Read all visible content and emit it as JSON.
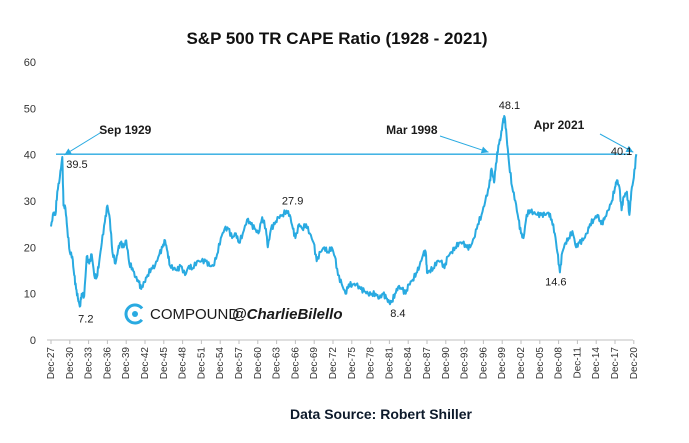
{
  "chart_data": {
    "type": "line",
    "title": "S&P 500 TR CAPE Ratio (1928 - 2021)",
    "xlabel": "",
    "ylabel": "",
    "ylim": [
      0,
      60
    ],
    "yticks": [
      0,
      10,
      20,
      30,
      40,
      50,
      60
    ],
    "grid": false,
    "x_tick_labels": [
      "Dec-27",
      "Dec-30",
      "Dec-33",
      "Dec-36",
      "Dec-39",
      "Dec-42",
      "Dec-45",
      "Dec-48",
      "Dec-51",
      "Dec-54",
      "Dec-57",
      "Dec-60",
      "Dec-63",
      "Dec-66",
      "Dec-69",
      "Dec-72",
      "Dec-75",
      "Dec-78",
      "Dec-81",
      "Dec-84",
      "Dec-87",
      "Dec-90",
      "Dec-93",
      "Dec-96",
      "Dec-99",
      "Dec-02",
      "Dec-05",
      "Dec-08",
      "Dec-11",
      "Dec-14",
      "Dec-17",
      "Dec-20"
    ],
    "series": [
      {
        "values": [
          [
            1927.9,
            24.5
          ],
          [
            1928.3,
            27.5
          ],
          [
            1928.6,
            27
          ],
          [
            1928.9,
            32
          ],
          [
            1929.3,
            35
          ],
          [
            1929.7,
            39.5
          ],
          [
            1929.9,
            29
          ],
          [
            1930.2,
            28.5
          ],
          [
            1930.5,
            24
          ],
          [
            1930.9,
            19
          ],
          [
            1931.3,
            18
          ],
          [
            1931.6,
            14
          ],
          [
            1931.9,
            11
          ],
          [
            1932.2,
            9
          ],
          [
            1932.5,
            7.2
          ],
          [
            1932.8,
            10
          ],
          [
            1933.2,
            9.5
          ],
          [
            1933.6,
            18
          ],
          [
            1934.0,
            16.5
          ],
          [
            1934.4,
            18.5
          ],
          [
            1934.8,
            14
          ],
          [
            1935.2,
            13.5
          ],
          [
            1935.6,
            17
          ],
          [
            1936.0,
            21
          ],
          [
            1936.5,
            25.5
          ],
          [
            1936.9,
            29
          ],
          [
            1937.3,
            26
          ],
          [
            1937.7,
            19
          ],
          [
            1938.2,
            16.5
          ],
          [
            1938.6,
            19.5
          ],
          [
            1939.0,
            21
          ],
          [
            1939.5,
            20
          ],
          [
            1939.9,
            21.5
          ],
          [
            1940.4,
            16.5
          ],
          [
            1940.9,
            15.5
          ],
          [
            1941.4,
            13.5
          ],
          [
            1941.9,
            12.5
          ],
          [
            1942.3,
            11
          ],
          [
            1942.8,
            12.5
          ],
          [
            1943.3,
            14
          ],
          [
            1943.9,
            15.5
          ],
          [
            1944.5,
            16
          ],
          [
            1945.2,
            18.5
          ],
          [
            1945.7,
            20
          ],
          [
            1946.1,
            21.5
          ],
          [
            1946.5,
            19
          ],
          [
            1946.9,
            16
          ],
          [
            1947.5,
            15.5
          ],
          [
            1948.0,
            15
          ],
          [
            1948.6,
            16
          ],
          [
            1949.3,
            14
          ],
          [
            1949.9,
            16
          ],
          [
            1950.5,
            15.5
          ],
          [
            1951.2,
            17
          ],
          [
            1951.9,
            17
          ],
          [
            1952.6,
            17
          ],
          [
            1953.2,
            16
          ],
          [
            1953.8,
            16
          ],
          [
            1954.4,
            18.5
          ],
          [
            1955.0,
            22
          ],
          [
            1955.6,
            24
          ],
          [
            1956.2,
            24
          ],
          [
            1956.8,
            22
          ],
          [
            1957.4,
            23
          ],
          [
            1957.9,
            21
          ],
          [
            1958.5,
            23
          ],
          [
            1959.2,
            26
          ],
          [
            1959.8,
            25
          ],
          [
            1960.4,
            24
          ],
          [
            1961.0,
            23
          ],
          [
            1961.6,
            26.5
          ],
          [
            1962.2,
            24
          ],
          [
            1962.5,
            20
          ],
          [
            1963.0,
            24
          ],
          [
            1963.6,
            25
          ],
          [
            1964.2,
            26.5
          ],
          [
            1964.8,
            27
          ],
          [
            1965.5,
            27.9
          ],
          [
            1966.0,
            27
          ],
          [
            1966.5,
            24
          ],
          [
            1966.9,
            22
          ],
          [
            1967.5,
            25
          ],
          [
            1968.0,
            24
          ],
          [
            1968.6,
            25
          ],
          [
            1969.2,
            23
          ],
          [
            1969.8,
            21
          ],
          [
            1970.3,
            17
          ],
          [
            1970.9,
            19
          ],
          [
            1971.5,
            20
          ],
          [
            1972.1,
            19
          ],
          [
            1972.7,
            20
          ],
          [
            1973.2,
            18
          ],
          [
            1973.7,
            14
          ],
          [
            1974.3,
            12
          ],
          [
            1974.9,
            10
          ],
          [
            1975.4,
            12
          ],
          [
            1976.0,
            12
          ],
          [
            1976.6,
            12
          ],
          [
            1977.3,
            11
          ],
          [
            1977.9,
            10.5
          ],
          [
            1978.5,
            10
          ],
          [
            1979.1,
            10
          ],
          [
            1979.7,
            10
          ],
          [
            1980.3,
            9
          ],
          [
            1980.9,
            10
          ],
          [
            1981.4,
            9
          ],
          [
            1981.9,
            8
          ],
          [
            1982.3,
            8.4
          ],
          [
            1982.8,
            10
          ],
          [
            1983.3,
            11.5
          ],
          [
            1983.9,
            11
          ],
          [
            1984.5,
            10
          ],
          [
            1985.0,
            12
          ],
          [
            1985.6,
            13
          ],
          [
            1986.2,
            14.5
          ],
          [
            1986.7,
            16
          ],
          [
            1987.3,
            18.5
          ],
          [
            1987.7,
            19
          ],
          [
            1987.9,
            14.5
          ],
          [
            1988.3,
            15
          ],
          [
            1988.9,
            15.5
          ],
          [
            1989.5,
            17
          ],
          [
            1990.1,
            17
          ],
          [
            1990.7,
            15.5
          ],
          [
            1991.2,
            18
          ],
          [
            1991.8,
            19
          ],
          [
            1992.4,
            20
          ],
          [
            1993.0,
            21
          ],
          [
            1993.6,
            21
          ],
          [
            1994.2,
            20
          ],
          [
            1994.8,
            20
          ],
          [
            1995.4,
            22
          ],
          [
            1996.0,
            25
          ],
          [
            1996.6,
            27
          ],
          [
            1997.2,
            30
          ],
          [
            1997.8,
            33
          ],
          [
            1998.2,
            37
          ],
          [
            1998.6,
            34
          ],
          [
            1998.9,
            38
          ],
          [
            1999.3,
            42
          ],
          [
            1999.7,
            44
          ],
          [
            2000.0,
            47
          ],
          [
            2000.3,
            48.1
          ],
          [
            2000.6,
            44
          ],
          [
            2001.0,
            38
          ],
          [
            2001.5,
            33
          ],
          [
            2002.0,
            30
          ],
          [
            2002.5,
            26
          ],
          [
            2002.9,
            23
          ],
          [
            2003.3,
            22
          ],
          [
            2003.8,
            27
          ],
          [
            2004.3,
            28
          ],
          [
            2004.9,
            27.5
          ],
          [
            2005.5,
            27
          ],
          [
            2006.1,
            27
          ],
          [
            2006.7,
            27
          ],
          [
            2007.3,
            27.5
          ],
          [
            2007.8,
            26
          ],
          [
            2008.3,
            23
          ],
          [
            2008.7,
            19
          ],
          [
            2009.1,
            14.6
          ],
          [
            2009.5,
            19
          ],
          [
            2010.0,
            21
          ],
          [
            2010.5,
            22
          ],
          [
            2011.1,
            23.5
          ],
          [
            2011.7,
            20
          ],
          [
            2012.2,
            21
          ],
          [
            2012.8,
            21.5
          ],
          [
            2013.4,
            23
          ],
          [
            2013.9,
            25
          ],
          [
            2014.5,
            26
          ],
          [
            2015.1,
            27
          ],
          [
            2015.7,
            25
          ],
          [
            2016.2,
            26
          ],
          [
            2016.8,
            28
          ],
          [
            2017.4,
            30
          ],
          [
            2017.9,
            33
          ],
          [
            2018.2,
            34.5
          ],
          [
            2018.6,
            33
          ],
          [
            2018.95,
            28
          ],
          [
            2019.3,
            31
          ],
          [
            2019.8,
            32
          ],
          [
            2020.2,
            27
          ],
          [
            2020.5,
            32
          ],
          [
            2020.9,
            35
          ],
          [
            2021.3,
            40.1
          ]
        ]
      }
    ],
    "reference_line": {
      "value": 40.1
    },
    "annotations": [
      {
        "label": "Sep 1929",
        "x": 1929.7,
        "y": 39.5
      },
      {
        "label": "Mar 1998",
        "x": 1998.2,
        "y": 40.1
      },
      {
        "label": "Apr 2021",
        "x": 2021.3,
        "y": 40.1
      }
    ],
    "data_labels": [
      {
        "text": "39.5",
        "x": 1929.7,
        "y": 39.5
      },
      {
        "text": "7.2",
        "x": 1932.5,
        "y": 7.2
      },
      {
        "text": "27.9",
        "x": 1965.5,
        "y": 27.9
      },
      {
        "text": "8.4",
        "x": 1982.3,
        "y": 8.4
      },
      {
        "text": "48.1",
        "x": 2000.3,
        "y": 48.1
      },
      {
        "text": "14.6",
        "x": 2009.1,
        "y": 14.6
      },
      {
        "text": "40.1",
        "x": 2021.3,
        "y": 40.1
      }
    ],
    "watermark": {
      "brand": "COMPOUND",
      "handle": "@CharlieBilello"
    },
    "source": "Data Source: Robert Shiller",
    "colors": {
      "line": "#29aae1",
      "ref_line": "#29aae1",
      "arrow": "#29aae1",
      "logo": "#29aae1"
    }
  }
}
